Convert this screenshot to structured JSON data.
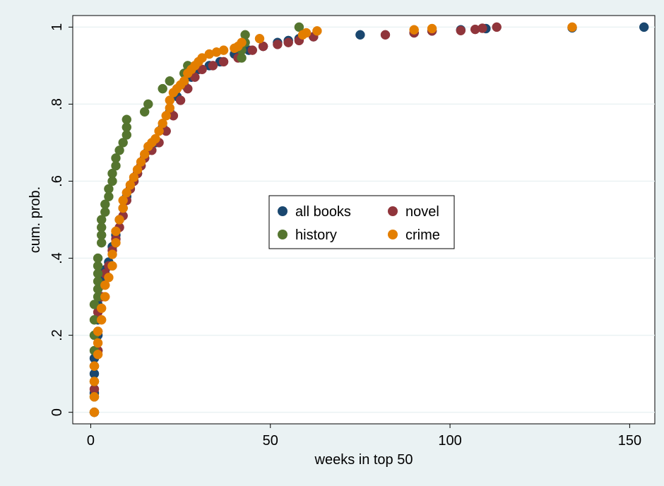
{
  "chart_data": {
    "type": "scatter",
    "title": "",
    "xlabel": "weeks in top 50",
    "ylabel": "cum. prob.",
    "xlim": [
      -5,
      157
    ],
    "ylim": [
      -0.03,
      1.03
    ],
    "x_ticks": [
      0,
      50,
      100,
      150
    ],
    "x_tick_labels": [
      "0",
      "50",
      "100",
      "150"
    ],
    "y_ticks": [
      0,
      0.2,
      0.4,
      0.6,
      0.8,
      1
    ],
    "y_tick_labels": [
      "0",
      ".2",
      ".4",
      ".6",
      ".8",
      "1"
    ],
    "grid": "horizontal",
    "legend_position": "center",
    "series": [
      {
        "name": "all books",
        "color": "#1a476f",
        "points": [
          [
            1,
            0.0
          ],
          [
            1,
            0.05
          ],
          [
            1,
            0.1
          ],
          [
            1,
            0.14
          ],
          [
            2,
            0.16
          ],
          [
            2,
            0.2
          ],
          [
            2,
            0.24
          ],
          [
            2,
            0.28
          ],
          [
            3,
            0.3
          ],
          [
            3,
            0.33
          ],
          [
            4,
            0.35
          ],
          [
            4,
            0.37
          ],
          [
            5,
            0.39
          ],
          [
            6,
            0.43
          ],
          [
            7,
            0.46
          ],
          [
            8,
            0.5
          ],
          [
            9,
            0.53
          ],
          [
            10,
            0.56
          ],
          [
            11,
            0.58
          ],
          [
            12,
            0.6
          ],
          [
            13,
            0.62
          ],
          [
            14,
            0.64
          ],
          [
            15,
            0.66
          ],
          [
            16,
            0.68
          ],
          [
            18,
            0.7
          ],
          [
            20,
            0.74
          ],
          [
            22,
            0.78
          ],
          [
            24,
            0.82
          ],
          [
            26,
            0.85
          ],
          [
            28,
            0.87
          ],
          [
            30,
            0.89
          ],
          [
            33,
            0.9
          ],
          [
            36,
            0.91
          ],
          [
            40,
            0.93
          ],
          [
            44,
            0.94
          ],
          [
            48,
            0.95
          ],
          [
            52,
            0.96
          ],
          [
            55,
            0.965
          ],
          [
            58,
            0.97
          ],
          [
            62,
            0.975
          ],
          [
            75,
            0.98
          ],
          [
            90,
            0.985
          ],
          [
            95,
            0.99
          ],
          [
            103,
            0.993
          ],
          [
            110,
            0.996
          ],
          [
            134,
            0.998
          ],
          [
            154,
            1.0
          ]
        ]
      },
      {
        "name": "novel",
        "color": "#90353b",
        "points": [
          [
            1,
            0.0
          ],
          [
            1,
            0.06
          ],
          [
            1,
            0.12
          ],
          [
            2,
            0.16
          ],
          [
            2,
            0.21
          ],
          [
            2,
            0.26
          ],
          [
            3,
            0.3
          ],
          [
            3,
            0.33
          ],
          [
            4,
            0.36
          ],
          [
            5,
            0.38
          ],
          [
            6,
            0.42
          ],
          [
            7,
            0.45
          ],
          [
            8,
            0.48
          ],
          [
            9,
            0.51
          ],
          [
            10,
            0.55
          ],
          [
            11,
            0.58
          ],
          [
            12,
            0.6
          ],
          [
            13,
            0.62
          ],
          [
            14,
            0.64
          ],
          [
            15,
            0.66
          ],
          [
            17,
            0.68
          ],
          [
            19,
            0.7
          ],
          [
            21,
            0.73
          ],
          [
            23,
            0.77
          ],
          [
            25,
            0.81
          ],
          [
            27,
            0.84
          ],
          [
            29,
            0.87
          ],
          [
            31,
            0.89
          ],
          [
            34,
            0.9
          ],
          [
            37,
            0.91
          ],
          [
            41,
            0.92
          ],
          [
            45,
            0.94
          ],
          [
            48,
            0.95
          ],
          [
            52,
            0.955
          ],
          [
            55,
            0.96
          ],
          [
            58,
            0.965
          ],
          [
            62,
            0.975
          ],
          [
            82,
            0.98
          ],
          [
            90,
            0.985
          ],
          [
            95,
            0.99
          ],
          [
            103,
            0.991
          ],
          [
            107,
            0.994
          ],
          [
            109,
            0.997
          ],
          [
            113,
            1.0
          ]
        ]
      },
      {
        "name": "history",
        "color": "#55752f",
        "points": [
          [
            1,
            0.0
          ],
          [
            1,
            0.04
          ],
          [
            1,
            0.08
          ],
          [
            1,
            0.12
          ],
          [
            1,
            0.16
          ],
          [
            1,
            0.2
          ],
          [
            1,
            0.24
          ],
          [
            1,
            0.28
          ],
          [
            2,
            0.3
          ],
          [
            2,
            0.32
          ],
          [
            2,
            0.34
          ],
          [
            2,
            0.36
          ],
          [
            2,
            0.38
          ],
          [
            2,
            0.4
          ],
          [
            3,
            0.44
          ],
          [
            3,
            0.46
          ],
          [
            3,
            0.48
          ],
          [
            3,
            0.5
          ],
          [
            4,
            0.52
          ],
          [
            4,
            0.54
          ],
          [
            5,
            0.56
          ],
          [
            5,
            0.58
          ],
          [
            6,
            0.6
          ],
          [
            6,
            0.62
          ],
          [
            7,
            0.64
          ],
          [
            7,
            0.66
          ],
          [
            8,
            0.68
          ],
          [
            9,
            0.7
          ],
          [
            10,
            0.72
          ],
          [
            10,
            0.74
          ],
          [
            10,
            0.76
          ],
          [
            15,
            0.78
          ],
          [
            16,
            0.8
          ],
          [
            20,
            0.84
          ],
          [
            22,
            0.86
          ],
          [
            26,
            0.88
          ],
          [
            27,
            0.9
          ],
          [
            42,
            0.92
          ],
          [
            42,
            0.94
          ],
          [
            43,
            0.96
          ],
          [
            43,
            0.98
          ],
          [
            58,
            1.0
          ]
        ]
      },
      {
        "name": "crime",
        "color": "#e37e00",
        "points": [
          [
            1,
            0.0
          ],
          [
            1,
            0.04
          ],
          [
            1,
            0.08
          ],
          [
            1,
            0.12
          ],
          [
            2,
            0.15
          ],
          [
            2,
            0.18
          ],
          [
            2,
            0.21
          ],
          [
            3,
            0.24
          ],
          [
            3,
            0.27
          ],
          [
            4,
            0.3
          ],
          [
            4,
            0.33
          ],
          [
            5,
            0.35
          ],
          [
            6,
            0.38
          ],
          [
            6,
            0.41
          ],
          [
            7,
            0.44
          ],
          [
            7,
            0.47
          ],
          [
            8,
            0.5
          ],
          [
            9,
            0.53
          ],
          [
            9,
            0.55
          ],
          [
            10,
            0.57
          ],
          [
            11,
            0.59
          ],
          [
            12,
            0.61
          ],
          [
            13,
            0.63
          ],
          [
            14,
            0.65
          ],
          [
            15,
            0.67
          ],
          [
            16,
            0.69
          ],
          [
            17,
            0.7
          ],
          [
            18,
            0.71
          ],
          [
            19,
            0.73
          ],
          [
            20,
            0.75
          ],
          [
            21,
            0.77
          ],
          [
            22,
            0.79
          ],
          [
            22,
            0.81
          ],
          [
            23,
            0.83
          ],
          [
            24,
            0.84
          ],
          [
            25,
            0.85
          ],
          [
            26,
            0.86
          ],
          [
            27,
            0.88
          ],
          [
            28,
            0.89
          ],
          [
            29,
            0.9
          ],
          [
            30,
            0.91
          ],
          [
            31,
            0.92
          ],
          [
            33,
            0.93
          ],
          [
            35,
            0.935
          ],
          [
            37,
            0.94
          ],
          [
            40,
            0.945
          ],
          [
            41,
            0.95
          ],
          [
            42,
            0.96
          ],
          [
            47,
            0.97
          ],
          [
            59,
            0.98
          ],
          [
            60,
            0.985
          ],
          [
            63,
            0.99
          ],
          [
            90,
            0.993
          ],
          [
            95,
            0.996
          ],
          [
            134,
            1.0
          ]
        ]
      }
    ]
  }
}
